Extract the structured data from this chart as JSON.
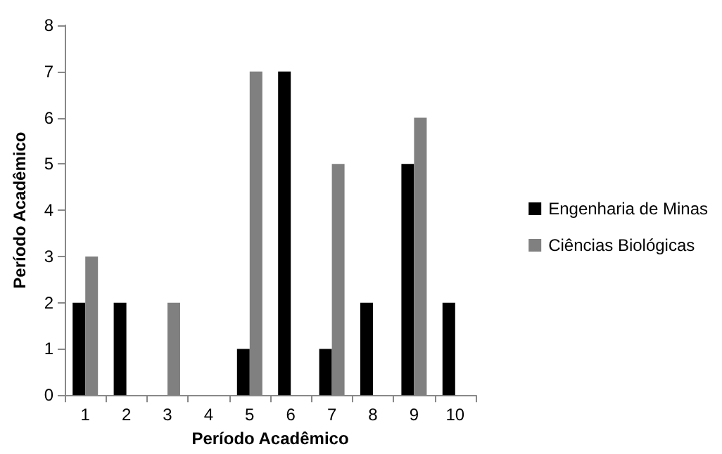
{
  "chart_data": {
    "type": "bar",
    "xlabel": "Período Acadêmico",
    "ylabel": "Período Acadêmico",
    "categories": [
      "1",
      "2",
      "3",
      "4",
      "5",
      "6",
      "7",
      "8",
      "9",
      "10"
    ],
    "series": [
      {
        "name": "Engenharia de Minas",
        "color": "#000000",
        "values": [
          2,
          2,
          0,
          0,
          1,
          7,
          1,
          2,
          5,
          2
        ]
      },
      {
        "name": "Ciências Biológicas",
        "color": "#808080",
        "values": [
          3,
          0,
          2,
          0,
          7,
          0,
          5,
          0,
          6,
          0
        ]
      }
    ],
    "ylim": [
      0,
      8
    ],
    "yticks": [
      0,
      1,
      2,
      3,
      4,
      5,
      6,
      7,
      8
    ],
    "grid": false,
    "legend": "right"
  }
}
